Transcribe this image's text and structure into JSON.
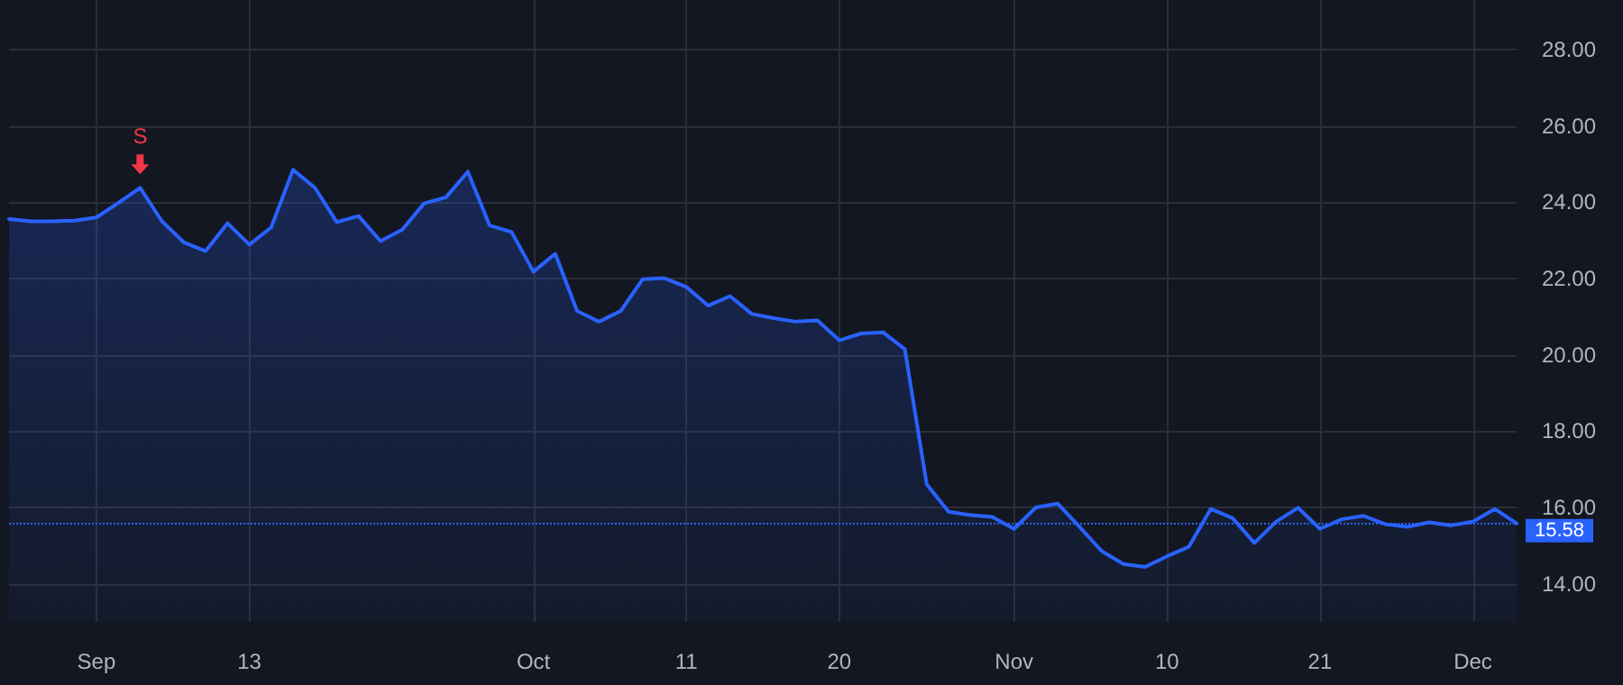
{
  "chart_data": {
    "type": "area",
    "categories": [
      null,
      null,
      null,
      null,
      "Sep",
      null,
      null,
      null,
      null,
      null,
      null,
      "13",
      null,
      null,
      null,
      null,
      null,
      null,
      null,
      null,
      null,
      null,
      null,
      null,
      "Oct",
      null,
      null,
      null,
      null,
      null,
      null,
      "11",
      null,
      null,
      null,
      null,
      null,
      null,
      "20",
      null,
      null,
      null,
      null,
      null,
      null,
      null,
      "Nov",
      null,
      null,
      null,
      null,
      null,
      null,
      "10",
      null,
      null,
      null,
      null,
      null,
      null,
      "21",
      null,
      null,
      null,
      null,
      null,
      null,
      "Dec",
      null,
      null
    ],
    "series": [
      {
        "color": "#2962ff",
        "values": [
          23.56,
          23.5,
          23.5,
          23.52,
          23.6,
          23.98,
          24.38,
          23.5,
          22.95,
          22.72,
          23.45,
          22.89,
          23.34,
          24.85,
          24.38,
          23.48,
          23.64,
          22.98,
          23.28,
          23.97,
          24.13,
          24.8,
          23.39,
          23.22,
          22.18,
          22.65,
          21.15,
          20.87,
          21.15,
          21.98,
          22.01,
          21.78,
          21.29,
          21.54,
          21.07,
          20.96,
          20.87,
          20.9,
          20.38,
          20.56,
          20.59,
          20.15,
          16.61,
          15.89,
          15.8,
          15.75,
          15.44,
          16.0,
          16.1,
          15.49,
          14.86,
          14.52,
          14.44,
          14.72,
          14.97,
          15.96,
          15.72,
          15.07,
          15.63,
          15.99,
          15.44,
          15.69,
          15.78,
          15.56,
          15.49,
          15.61,
          15.53,
          15.63,
          15.96,
          15.58
        ]
      }
    ],
    "ylim": [
      13,
      29.3
    ],
    "yticks": [
      {
        "value": 14,
        "label": "14.00"
      },
      {
        "value": 16,
        "label": "16.00"
      },
      {
        "value": 18,
        "label": "18.00"
      },
      {
        "value": 20,
        "label": "20.00"
      },
      {
        "value": 22,
        "label": "22.00"
      },
      {
        "value": 24,
        "label": "24.00"
      },
      {
        "value": 26,
        "label": "26.00"
      },
      {
        "value": 28,
        "label": "28.00"
      }
    ],
    "ref_lines": [
      {
        "axis": "y",
        "value": 15.58,
        "label": "15.58",
        "color": "#2962ff",
        "line_style": "dotted"
      }
    ],
    "annotations": [
      {
        "text": "S",
        "y": 24.38
      }
    ],
    "grid": true,
    "marker": "none",
    "line_style": "solid"
  }
}
